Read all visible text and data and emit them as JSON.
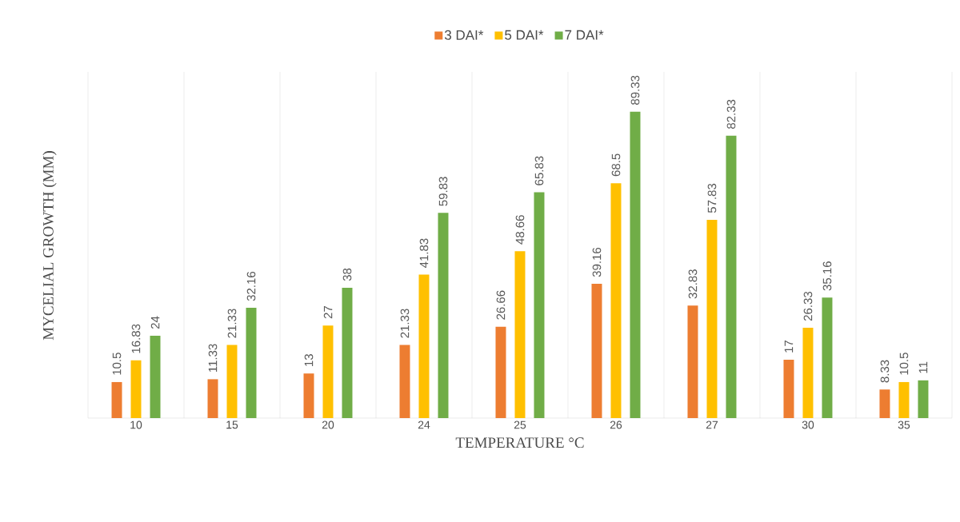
{
  "chart_data": {
    "type": "bar",
    "xlabel": "TEMPERATURE °C",
    "ylabel": "MYCELIAL GROWTH (MM)",
    "categories": [
      "10",
      "15",
      "20",
      "24",
      "25",
      "26",
      "27",
      "30",
      "35"
    ],
    "series": [
      {
        "name": "3 DAI*",
        "color": "#ed7d31",
        "values": [
          10.5,
          11.33,
          13,
          21.33,
          26.66,
          39.16,
          32.83,
          17,
          8.33
        ]
      },
      {
        "name": "5 DAI*",
        "color": "#ffc000",
        "values": [
          16.83,
          21.33,
          27,
          41.83,
          48.66,
          68.5,
          57.83,
          26.33,
          10.5
        ]
      },
      {
        "name": "7 DAI*",
        "color": "#70ad47",
        "values": [
          24,
          32.16,
          38,
          59.83,
          65.83,
          89.33,
          82.33,
          35.16,
          11
        ]
      }
    ],
    "data_labels": true,
    "grid": "x",
    "legend": "top",
    "tick_labels": "x"
  }
}
